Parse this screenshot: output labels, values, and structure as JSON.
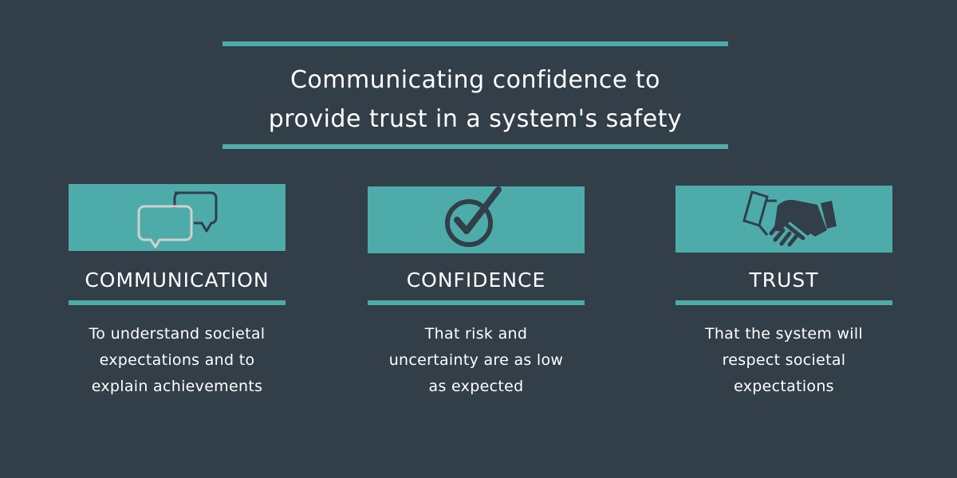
{
  "title_lines": [
    "Communicating confidence to",
    "provide trust in a system's safety"
  ],
  "colors": {
    "background": "#323e48",
    "accent": "#4dacaa",
    "icon_dark": "#323e48",
    "icon_light": "#d0d0d0"
  },
  "columns": [
    {
      "icon": "speech-bubbles-icon",
      "heading": "COMMUNICATION",
      "lines": [
        "To understand societal",
        "expectations and to",
        "explain achievements"
      ]
    },
    {
      "icon": "check-circle-icon",
      "heading": "CONFIDENCE",
      "lines": [
        "That risk and",
        "uncertainty are as low",
        "as expected"
      ]
    },
    {
      "icon": "handshake-icon",
      "heading": "TRUST",
      "lines": [
        "That the system will",
        "respect societal",
        "expectations"
      ]
    }
  ]
}
